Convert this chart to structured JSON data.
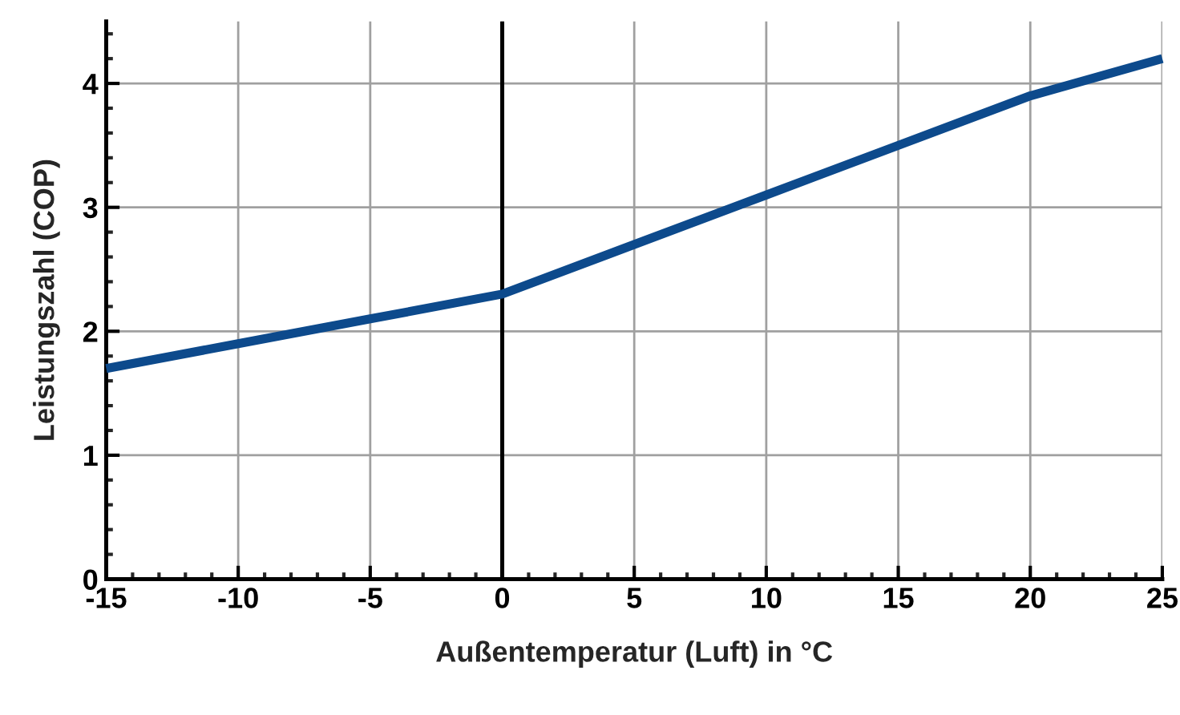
{
  "chart_data": {
    "type": "line",
    "xlabel": "Außentemperatur (Luft) in °C",
    "ylabel": "Leistungszahl (COP)",
    "x": [
      -15,
      -10,
      -5,
      0,
      5,
      10,
      15,
      20,
      25
    ],
    "series": [
      {
        "color": "#0d4a8c",
        "values": [
          1.7,
          1.9,
          2.1,
          2.3,
          2.7,
          3.1,
          3.5,
          3.9,
          4.2
        ]
      }
    ],
    "xlim": [
      -15,
      25
    ],
    "xticks": [
      -15,
      -10,
      -5,
      0,
      5,
      10,
      15,
      20,
      25
    ],
    "ylim": [
      0,
      4.5
    ],
    "yticks": [
      0,
      1,
      2,
      3,
      4
    ],
    "ref_lines": [
      {
        "axis": "x",
        "value": 0,
        "color": "#000000"
      }
    ],
    "grid": true,
    "marker": "none",
    "line_style": "solid"
  }
}
